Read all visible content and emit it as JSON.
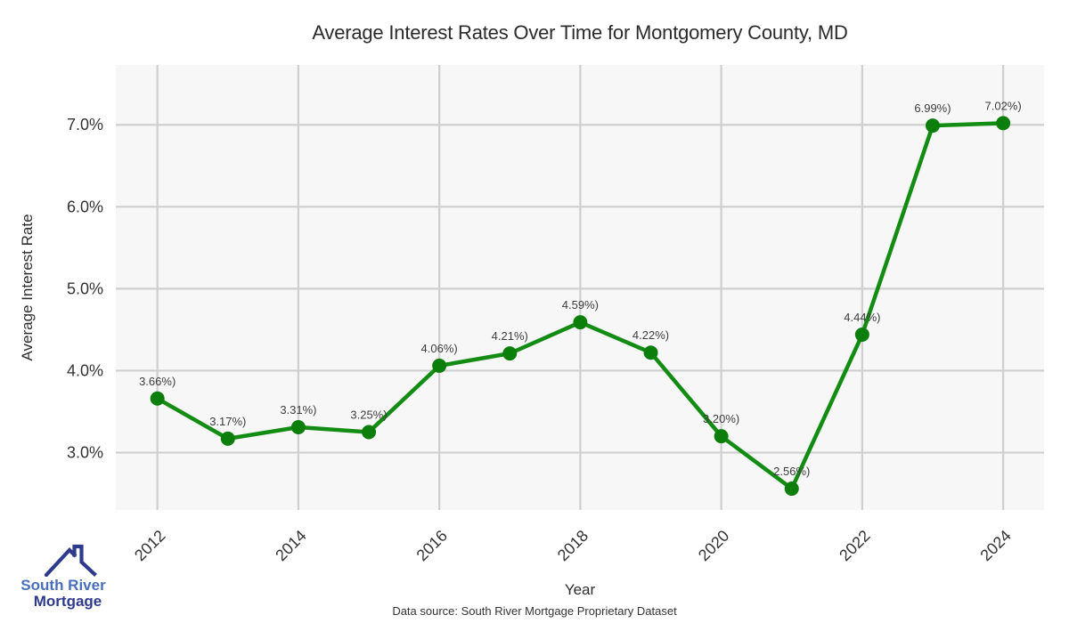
{
  "page": {
    "footer": "Data source: South River Mortgage Proprietary Dataset"
  },
  "logo": {
    "line1": "South River",
    "line2": "Mortgage",
    "colors": {
      "line1": "#4a6fba",
      "line2": "#2e3a8c",
      "roof": "#2e3a8c"
    }
  },
  "chart_data": {
    "type": "line",
    "title": "Average Interest Rates Over Time for Montgomery County, MD",
    "xlabel": "Year",
    "ylabel": "Average Interest Rate",
    "x": [
      2012,
      2013,
      2014,
      2015,
      2016,
      2017,
      2018,
      2019,
      2020,
      2021,
      2022,
      2023,
      2024
    ],
    "values": [
      3.66,
      3.17,
      3.31,
      3.25,
      4.06,
      4.21,
      4.59,
      4.22,
      3.2,
      2.56,
      4.44,
      6.99,
      7.02
    ],
    "point_labels": [
      "3.66%)",
      "3.17%)",
      "3.31%)",
      "3.25%)",
      "4.06%)",
      "4.21%)",
      "4.59%)",
      "4.22%)",
      "3.20%)",
      "2.56%)",
      "4.44%)",
      "6.99%)",
      "7.02%)"
    ],
    "x_tick_values": [
      2012,
      2014,
      2016,
      2018,
      2020,
      2022,
      2024
    ],
    "x_tick_labels": [
      "2012",
      "2014",
      "2016",
      "2018",
      "2020",
      "2022",
      "2024"
    ],
    "y_tick_values": [
      3,
      4,
      5,
      6,
      7
    ],
    "y_tick_labels": [
      "3.0%",
      "4.0%",
      "5.0%",
      "6.0%",
      "7.0%"
    ],
    "xlim": [
      2011.41,
      2024.58
    ],
    "ylim": [
      2.3,
      7.73
    ],
    "grid": true,
    "legend": "none",
    "colors": {
      "line": "#128c12",
      "marker": "#0c7e0c",
      "plot_bg": "#f7f7f7",
      "grid": "#cfcfcf",
      "tick_text": "#333333",
      "label_text": "#3d3d3d",
      "axis_text": "#2e2e2e"
    }
  }
}
